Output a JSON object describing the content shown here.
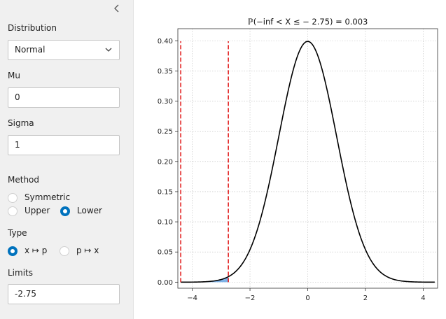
{
  "sidebar": {
    "collapse_icon": "chevron-left-icon",
    "distribution": {
      "label": "Distribution",
      "value": "Normal"
    },
    "mu": {
      "label": "Mu",
      "value": "0"
    },
    "sigma": {
      "label": "Sigma",
      "value": "1"
    },
    "method": {
      "label": "Method",
      "options": [
        "Symmetric",
        "Upper",
        "Lower"
      ],
      "selected": "Lower"
    },
    "type": {
      "label": "Type",
      "options": [
        "x ↦ p",
        "p ↦ x"
      ],
      "selected": "x ↦ p"
    },
    "limits": {
      "label": "Limits",
      "value": "-2.75"
    }
  },
  "chart_data": {
    "type": "line",
    "title": "ℙ(−inf < X ≤ − 2.75) = 0.003",
    "xlabel": "",
    "ylabel": "",
    "xlim": [
      -4.5,
      4.5
    ],
    "ylim": [
      -0.01,
      0.42
    ],
    "x_ticks": [
      "−4",
      "−2",
      "0",
      "2",
      "4"
    ],
    "y_ticks": [
      "0.00",
      "0.05",
      "0.10",
      "0.15",
      "0.20",
      "0.25",
      "0.30",
      "0.35",
      "0.40"
    ],
    "grid": true,
    "series": [
      {
        "kind": "normal-pdf",
        "mu": 0,
        "sigma": 1,
        "x_range": [
          -4.4,
          4.4
        ],
        "color": "#000000"
      }
    ],
    "vlines": [
      {
        "x": -4.4,
        "color": "#e32222",
        "style": "dashed"
      },
      {
        "x": -2.75,
        "color": "#e32222",
        "style": "dashed"
      }
    ],
    "shaded_region": {
      "from": -4.4,
      "to": -2.75,
      "color": "#7fb2e6"
    }
  }
}
